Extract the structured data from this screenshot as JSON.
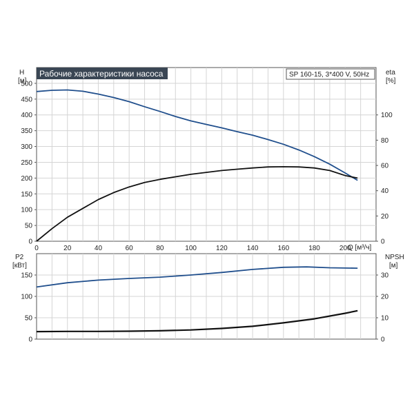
{
  "chart_data": [
    {
      "type": "line",
      "title": "Рабочие характеристики насоса",
      "model_label": "SP 160-15, 3*400 V, 50Hz",
      "xlabel": "Q [м³/ч]",
      "ylabel_left": [
        "H",
        "[м]"
      ],
      "ylabel_right": [
        "eta",
        "[%]"
      ],
      "xlim": [
        0,
        220
      ],
      "ylim_left": [
        0,
        550
      ],
      "ylim_right": [
        0,
        137.5
      ],
      "x_ticks": [
        0,
        20,
        40,
        60,
        80,
        100,
        120,
        140,
        160,
        180,
        200
      ],
      "y_ticks_left": [
        0,
        50,
        100,
        150,
        200,
        250,
        300,
        350,
        400,
        450,
        500
      ],
      "y_ticks_right": [
        0,
        20,
        40,
        60,
        80,
        100
      ],
      "grid": true,
      "series": [
        {
          "axis": "left",
          "color": "#1f4e8c",
          "x": [
            0,
            10,
            20,
            30,
            40,
            50,
            60,
            70,
            80,
            90,
            100,
            110,
            120,
            130,
            140,
            150,
            160,
            170,
            180,
            190,
            200,
            208
          ],
          "values": [
            474,
            478,
            479,
            475,
            466,
            455,
            442,
            426,
            411,
            395,
            381,
            370,
            359,
            347,
            336,
            322,
            307,
            289,
            268,
            244,
            216,
            193
          ]
        },
        {
          "axis": "right",
          "color": "#111111",
          "x": [
            0,
            10,
            20,
            30,
            40,
            50,
            60,
            70,
            80,
            90,
            100,
            110,
            120,
            130,
            140,
            150,
            160,
            170,
            180,
            190,
            200,
            208
          ],
          "values": [
            0,
            10,
            19,
            26,
            33,
            38.5,
            43,
            46.5,
            49,
            51,
            53,
            54.5,
            56,
            57,
            58,
            58.8,
            59,
            58.8,
            58,
            56,
            52,
            50
          ]
        }
      ]
    },
    {
      "type": "line",
      "ylabel_left": [
        "P2",
        "[кВт]"
      ],
      "ylabel_right": [
        "NPSH",
        "[м]"
      ],
      "xlim": [
        0,
        220
      ],
      "ylim_left": [
        0,
        200
      ],
      "ylim_right": [
        0,
        40
      ],
      "x_ticks": [
        0,
        20,
        40,
        60,
        80,
        100,
        120,
        140,
        160,
        180,
        200
      ],
      "y_ticks_left": [
        0,
        50,
        100,
        150
      ],
      "y_ticks_right": [
        0,
        10,
        20,
        30
      ],
      "grid": true,
      "series": [
        {
          "axis": "left",
          "color": "#1f4e8c",
          "x": [
            0,
            20,
            40,
            60,
            80,
            100,
            120,
            140,
            160,
            175,
            190,
            208
          ],
          "values": [
            122,
            132,
            138,
            142,
            145,
            150,
            156,
            163,
            168,
            169,
            167,
            166
          ]
        },
        {
          "axis": "right",
          "color": "#111111",
          "x": [
            0,
            20,
            40,
            60,
            80,
            100,
            120,
            140,
            160,
            180,
            200,
            208
          ],
          "values": [
            3.5,
            3.6,
            3.6,
            3.7,
            3.9,
            4.3,
            5.0,
            6.0,
            7.6,
            9.5,
            12.1,
            13.3
          ]
        }
      ]
    }
  ]
}
